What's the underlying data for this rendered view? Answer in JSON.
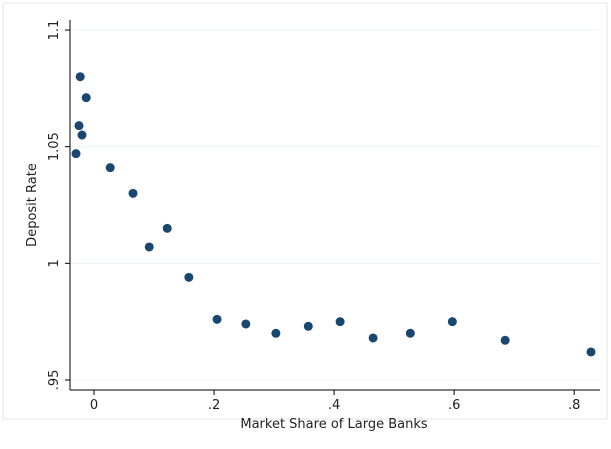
{
  "chart_data": {
    "type": "scatter",
    "x_label": "Market Share of Large Banks",
    "y_label": "Deposit Rate",
    "color": "#1a476f",
    "grid": true,
    "x": [
      -0.03,
      -0.023,
      -0.013,
      -0.025,
      -0.02,
      0.027,
      0.065,
      0.092,
      0.122,
      0.158,
      0.205,
      0.253,
      0.303,
      0.357,
      0.41,
      0.465,
      0.527,
      0.597,
      0.685,
      0.828
    ],
    "values": [
      1.047,
      1.08,
      1.071,
      1.059,
      1.055,
      1.041,
      1.03,
      1.007,
      1.015,
      0.994,
      0.976,
      0.974,
      0.97,
      0.973,
      0.975,
      0.968,
      0.97,
      0.975,
      0.967,
      0.962
    ],
    "xlim": [
      -0.04,
      0.843
    ],
    "ylim": [
      0.9457,
      1.1043
    ],
    "xticks": [
      0,
      {
        "value": 0.2,
        "label": ".2"
      },
      {
        "value": 0.4,
        "label": ".4"
      },
      {
        "value": 0.6,
        "label": ".6"
      },
      {
        "value": 0.8,
        "label": ".8"
      }
    ],
    "yticks": [
      {
        "value": 0.95,
        "label": ".95"
      },
      1,
      1.05,
      1.1
    ]
  }
}
